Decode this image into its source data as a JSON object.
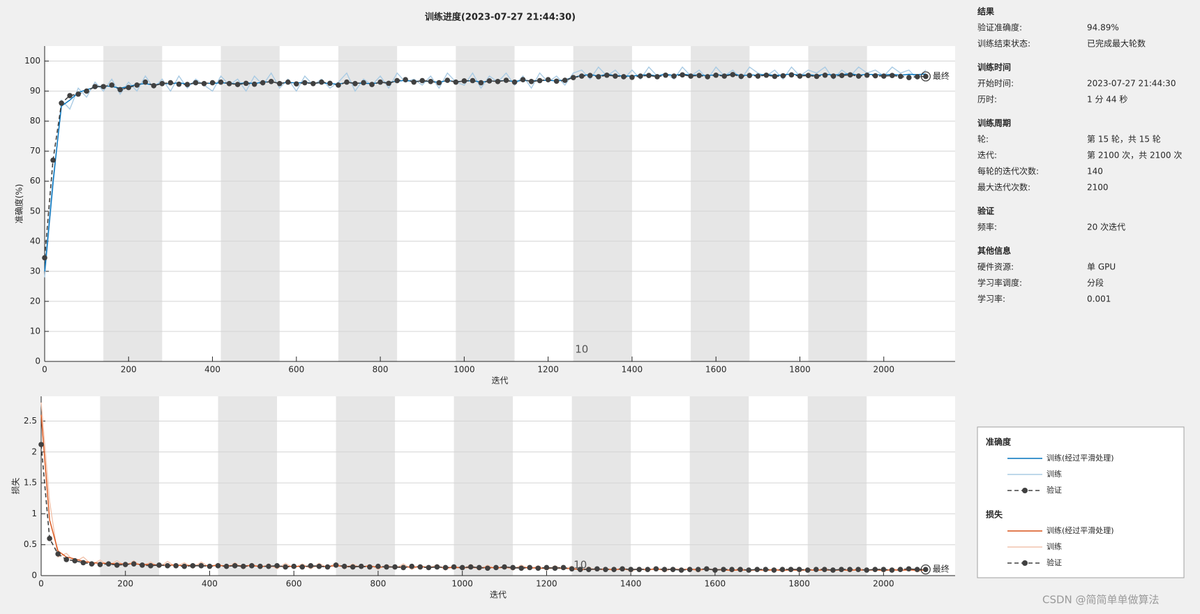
{
  "chart_data": [
    {
      "type": "line",
      "title": "训练进度(2023-07-27 21:44:30)",
      "xlabel": "迭代",
      "ylabel": "准确度(%)",
      "legend_title": "准确度",
      "final_label": "最终",
      "xlim": [
        0,
        2170
      ],
      "ylim": [
        0,
        105
      ],
      "xticks": [
        0,
        200,
        400,
        600,
        800,
        1000,
        1200,
        1400,
        1600,
        1800,
        2000
      ],
      "yticks": [
        0,
        10,
        20,
        30,
        40,
        50,
        60,
        70,
        80,
        90,
        100
      ],
      "grid": true,
      "annotations": [
        {
          "text": "10",
          "x": 1280,
          "y": 4
        }
      ],
      "x": [
        0,
        20,
        40,
        60,
        80,
        100,
        120,
        140,
        160,
        180,
        200,
        220,
        240,
        260,
        280,
        300,
        320,
        340,
        360,
        380,
        400,
        420,
        440,
        460,
        480,
        500,
        520,
        540,
        560,
        580,
        600,
        620,
        640,
        660,
        680,
        700,
        720,
        740,
        760,
        780,
        800,
        820,
        840,
        860,
        880,
        900,
        920,
        940,
        960,
        980,
        1000,
        1020,
        1040,
        1060,
        1080,
        1100,
        1120,
        1140,
        1160,
        1180,
        1200,
        1220,
        1240,
        1260,
        1280,
        1300,
        1320,
        1340,
        1360,
        1380,
        1400,
        1420,
        1440,
        1460,
        1480,
        1500,
        1520,
        1540,
        1560,
        1580,
        1600,
        1620,
        1640,
        1660,
        1680,
        1700,
        1720,
        1740,
        1760,
        1780,
        1800,
        1820,
        1840,
        1860,
        1880,
        1900,
        1920,
        1940,
        1960,
        1980,
        2000,
        2020,
        2040,
        2060,
        2080,
        2100
      ],
      "series": [
        {
          "name": "训练(经过平滑处理)",
          "color": "#0072bd",
          "line_style": "solid",
          "marker": "none",
          "values": [
            30,
            60,
            85,
            87,
            89.5,
            90.5,
            91.2,
            91.8,
            91.5,
            91,
            91.5,
            92.2,
            92.5,
            92,
            92.6,
            92.4,
            92.8,
            92.3,
            92.6,
            92.7,
            92.5,
            92.8,
            92.6,
            92.4,
            92.8,
            92.5,
            93,
            93.1,
            92.6,
            92.9,
            92.7,
            92.9,
            92.6,
            92.8,
            92.5,
            92.3,
            92.9,
            92.7,
            92.6,
            92.5,
            92.8,
            92.9,
            93.3,
            93.6,
            93.2,
            93.4,
            93.1,
            93,
            93.5,
            93.2,
            93.3,
            93.5,
            93,
            93.3,
            93.4,
            93.5,
            93.2,
            93.6,
            93.4,
            93.5,
            93.6,
            93.4,
            93.7,
            94.6,
            95.2,
            95.5,
            95,
            95.6,
            95.2,
            95,
            95,
            95.3,
            95.5,
            95,
            95.6,
            95.2,
            95.7,
            95.3,
            95.4,
            95.1,
            95.5,
            95.2,
            95.8,
            95.1,
            95.4,
            95.3,
            95.6,
            95.2,
            95.4,
            95.7,
            95.3,
            95.5,
            95.2,
            95.6,
            95.4,
            95.5,
            95.8,
            95.3,
            95.6,
            95.5,
            95.4,
            95.6,
            95.3,
            95.6,
            95.5,
            95.7
          ]
        },
        {
          "name": "训练",
          "color": "#a9cbe4",
          "line_style": "solid",
          "marker": "none",
          "values": [
            28,
            58,
            87,
            84,
            91,
            88,
            93,
            90,
            94,
            89,
            93,
            90,
            95,
            91,
            94,
            90,
            95,
            91,
            94,
            92,
            90,
            95,
            92,
            94,
            90,
            95,
            92,
            96,
            91,
            94,
            90,
            95,
            92,
            94,
            91,
            93,
            96,
            90,
            94,
            92,
            95,
            91,
            96,
            93,
            94,
            92,
            95,
            91,
            96,
            93,
            92,
            96,
            91,
            95,
            93,
            96,
            92,
            95,
            91,
            96,
            93,
            95,
            92,
            96,
            97,
            94,
            98,
            95,
            97,
            94,
            97,
            94,
            98,
            95,
            96,
            94,
            98,
            95,
            97,
            94,
            98,
            95,
            97,
            94,
            98,
            96,
            95,
            97,
            94,
            98,
            95,
            97,
            96,
            98,
            94,
            97,
            95,
            98,
            96,
            97,
            95,
            98,
            96,
            97,
            94,
            97
          ]
        },
        {
          "name": "验证",
          "color": "#404040",
          "line_style": "dashed",
          "marker": "circle",
          "values": [
            34.5,
            67,
            86,
            88.5,
            89,
            90,
            91.5,
            91.5,
            92,
            90.5,
            91.2,
            92,
            93,
            91.8,
            92.5,
            92.8,
            92.3,
            92.2,
            92.8,
            92.5,
            92.8,
            93,
            92.5,
            92.2,
            92.6,
            92.3,
            92.8,
            93.2,
            92.5,
            93,
            92.4,
            92.8,
            92.5,
            93,
            92.6,
            92,
            93,
            92.5,
            92.8,
            92.2,
            93,
            92.6,
            93.5,
            93.8,
            93,
            93.5,
            93.2,
            92.8,
            93.6,
            93,
            93.4,
            93.5,
            92.8,
            93.4,
            93.2,
            93.6,
            93,
            93.8,
            93.2,
            93.5,
            93.8,
            93.3,
            93.6,
            94.5,
            95,
            95.2,
            94.8,
            95.3,
            95,
            94.8,
            94.6,
            95,
            95.2,
            94.8,
            95.3,
            95,
            95.4,
            95,
            95.2,
            94.8,
            95.3,
            95,
            95.5,
            94.9,
            95.2,
            95,
            95.3,
            94.9,
            95.1,
            95.4,
            95,
            95.2,
            94.9,
            95.3,
            95,
            95.2,
            95.4,
            95,
            95.3,
            95.1,
            95,
            95.2,
            94.9,
            94.5,
            94.8,
            94.89
          ]
        }
      ]
    },
    {
      "type": "line",
      "xlabel": "迭代",
      "ylabel": "损失",
      "legend_title": "损失",
      "final_label": "最终",
      "xlim": [
        0,
        2170
      ],
      "ylim": [
        0,
        2.9
      ],
      "xticks": [
        0,
        200,
        400,
        600,
        800,
        1000,
        1200,
        1400,
        1600,
        1800,
        2000
      ],
      "yticks": [
        0,
        0.5,
        1,
        1.5,
        2,
        2.5
      ],
      "grid": true,
      "annotations": [
        {
          "text": "10",
          "x": 1280,
          "y": 0.17
        }
      ],
      "x": [
        0,
        20,
        40,
        60,
        80,
        100,
        120,
        140,
        160,
        180,
        200,
        220,
        240,
        260,
        280,
        300,
        320,
        340,
        360,
        380,
        400,
        420,
        440,
        460,
        480,
        500,
        520,
        540,
        560,
        580,
        600,
        620,
        640,
        660,
        680,
        700,
        720,
        740,
        760,
        780,
        800,
        820,
        840,
        860,
        880,
        900,
        920,
        940,
        960,
        980,
        1000,
        1020,
        1040,
        1060,
        1080,
        1100,
        1120,
        1140,
        1160,
        1180,
        1200,
        1220,
        1240,
        1260,
        1280,
        1300,
        1320,
        1340,
        1360,
        1380,
        1400,
        1420,
        1440,
        1460,
        1480,
        1500,
        1520,
        1540,
        1560,
        1580,
        1600,
        1620,
        1640,
        1660,
        1680,
        1700,
        1720,
        1740,
        1760,
        1780,
        1800,
        1820,
        1840,
        1860,
        1880,
        1900,
        1920,
        1940,
        1960,
        1980,
        2000,
        2020,
        2040,
        2060,
        2080,
        2100
      ],
      "series": [
        {
          "name": "训练(经过平滑处理)",
          "color": "#d95319",
          "line_style": "solid",
          "marker": "none",
          "values": [
            2.6,
            0.9,
            0.4,
            0.3,
            0.27,
            0.23,
            0.21,
            0.2,
            0.2,
            0.19,
            0.19,
            0.19,
            0.18,
            0.18,
            0.17,
            0.17,
            0.17,
            0.16,
            0.17,
            0.16,
            0.16,
            0.16,
            0.16,
            0.16,
            0.16,
            0.16,
            0.15,
            0.15,
            0.15,
            0.15,
            0.15,
            0.15,
            0.15,
            0.15,
            0.15,
            0.16,
            0.15,
            0.15,
            0.15,
            0.15,
            0.14,
            0.14,
            0.14,
            0.14,
            0.14,
            0.14,
            0.14,
            0.14,
            0.13,
            0.13,
            0.13,
            0.13,
            0.13,
            0.13,
            0.13,
            0.13,
            0.13,
            0.13,
            0.13,
            0.12,
            0.12,
            0.12,
            0.12,
            0.11,
            0.1,
            0.1,
            0.1,
            0.1,
            0.1,
            0.1,
            0.1,
            0.1,
            0.1,
            0.1,
            0.1,
            0.1,
            0.1,
            0.1,
            0.1,
            0.1,
            0.1,
            0.09,
            0.09,
            0.09,
            0.09,
            0.09,
            0.09,
            0.09,
            0.09,
            0.09,
            0.09,
            0.09,
            0.09,
            0.09,
            0.09,
            0.09,
            0.09,
            0.09,
            0.09,
            0.09,
            0.09,
            0.09,
            0.09,
            0.09,
            0.09,
            0.09
          ]
        },
        {
          "name": "训练",
          "color": "#f2c4ad",
          "line_style": "solid",
          "marker": "none",
          "values": [
            2.8,
            1.2,
            0.3,
            0.36,
            0.22,
            0.3,
            0.18,
            0.25,
            0.16,
            0.24,
            0.15,
            0.24,
            0.14,
            0.22,
            0.13,
            0.23,
            0.14,
            0.21,
            0.12,
            0.22,
            0.13,
            0.2,
            0.12,
            0.21,
            0.11,
            0.2,
            0.12,
            0.19,
            0.11,
            0.2,
            0.12,
            0.19,
            0.11,
            0.2,
            0.12,
            0.21,
            0.11,
            0.19,
            0.12,
            0.18,
            0.1,
            0.18,
            0.11,
            0.19,
            0.1,
            0.17,
            0.11,
            0.18,
            0.09,
            0.17,
            0.1,
            0.18,
            0.09,
            0.17,
            0.1,
            0.16,
            0.09,
            0.17,
            0.1,
            0.16,
            0.09,
            0.16,
            0.1,
            0.15,
            0.07,
            0.14,
            0.08,
            0.13,
            0.07,
            0.14,
            0.06,
            0.13,
            0.07,
            0.14,
            0.06,
            0.13,
            0.07,
            0.12,
            0.06,
            0.13,
            0.07,
            0.12,
            0.06,
            0.13,
            0.06,
            0.12,
            0.07,
            0.12,
            0.06,
            0.13,
            0.06,
            0.12,
            0.07,
            0.13,
            0.06,
            0.12,
            0.06,
            0.13,
            0.07,
            0.12,
            0.06,
            0.12,
            0.07,
            0.12,
            0.06,
            0.11
          ]
        },
        {
          "name": "验证",
          "color": "#404040",
          "line_style": "dashed",
          "marker": "circle",
          "values": [
            2.12,
            0.6,
            0.35,
            0.26,
            0.24,
            0.21,
            0.19,
            0.18,
            0.19,
            0.17,
            0.18,
            0.19,
            0.17,
            0.16,
            0.17,
            0.16,
            0.16,
            0.15,
            0.16,
            0.16,
            0.15,
            0.16,
            0.15,
            0.16,
            0.15,
            0.16,
            0.15,
            0.15,
            0.16,
            0.14,
            0.15,
            0.14,
            0.16,
            0.15,
            0.14,
            0.17,
            0.15,
            0.14,
            0.15,
            0.14,
            0.15,
            0.14,
            0.14,
            0.13,
            0.15,
            0.14,
            0.13,
            0.14,
            0.13,
            0.14,
            0.13,
            0.14,
            0.13,
            0.12,
            0.13,
            0.14,
            0.13,
            0.12,
            0.13,
            0.12,
            0.13,
            0.12,
            0.13,
            0.11,
            0.1,
            0.1,
            0.11,
            0.1,
            0.1,
            0.11,
            0.1,
            0.1,
            0.1,
            0.11,
            0.1,
            0.1,
            0.09,
            0.1,
            0.1,
            0.11,
            0.09,
            0.1,
            0.1,
            0.1,
            0.09,
            0.1,
            0.1,
            0.09,
            0.1,
            0.1,
            0.1,
            0.09,
            0.1,
            0.1,
            0.09,
            0.1,
            0.1,
            0.1,
            0.09,
            0.1,
            0.1,
            0.09,
            0.1,
            0.11,
            0.1,
            0.1
          ]
        }
      ]
    }
  ],
  "info": {
    "sections": [
      {
        "title": "结果",
        "rows": [
          {
            "label": "验证准确度:",
            "value": "94.89%"
          },
          {
            "label": "训练结束状态:",
            "value": "已完成最大轮数"
          }
        ]
      },
      {
        "title": "训练时间",
        "rows": [
          {
            "label": "开始时间:",
            "value": "2023-07-27 21:44:30"
          },
          {
            "label": "历时:",
            "value": "1 分 44 秒"
          }
        ]
      },
      {
        "title": "训练周期",
        "rows": [
          {
            "label": "轮:",
            "value": "第 15 轮，共 15 轮"
          },
          {
            "label": "迭代:",
            "value": "第 2100 次，共 2100 次"
          },
          {
            "label": "每轮的迭代次数:",
            "value": "140"
          },
          {
            "label": "最大迭代次数:",
            "value": "2100"
          }
        ]
      },
      {
        "title": "验证",
        "rows": [
          {
            "label": "频率:",
            "value": "20 次迭代"
          }
        ]
      },
      {
        "title": "其他信息",
        "rows": [
          {
            "label": "硬件资源:",
            "value": "单 GPU"
          },
          {
            "label": "学习率调度:",
            "value": "分段"
          },
          {
            "label": "学习率:",
            "value": "0.001"
          }
        ]
      }
    ]
  },
  "watermark": "CSDN @简简单单做算法"
}
